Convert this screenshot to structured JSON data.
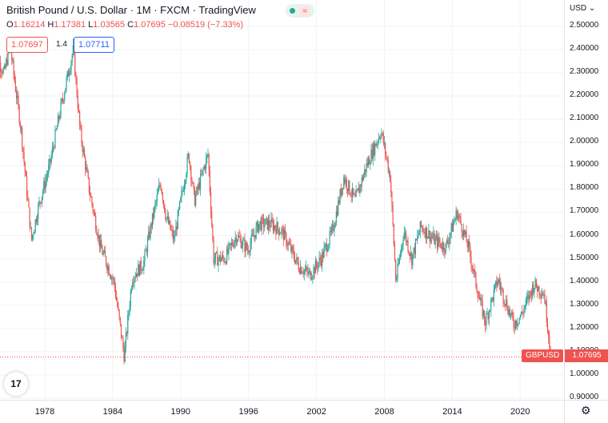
{
  "legend": {
    "title": "British Pound / U.S. Dollar · 1M · FXCM · TradingView",
    "o_label": "O",
    "o_value": "1.16214",
    "h_label": "H",
    "h_value": "1.17381",
    "l_label": "L",
    "l_value": "1.03565",
    "c_label": "C",
    "c_value": "1.07695",
    "change": "−0.08519 (−7.33%)"
  },
  "trade": {
    "sell_price": "1.07697",
    "spread": "1.4",
    "buy_price": "1.07711"
  },
  "price_axis": {
    "currency": "USD",
    "labels": [
      "2.50000",
      "2.40000",
      "2.30000",
      "2.20000",
      "2.10000",
      "2.00000",
      "1.90000",
      "1.80000",
      "1.70000",
      "1.60000",
      "1.50000",
      "1.40000",
      "1.30000",
      "1.20000",
      "1.10000",
      "1.00000",
      "0.90000"
    ]
  },
  "time_axis": {
    "labels": [
      "1978",
      "1984",
      "1990",
      "1996",
      "2002",
      "2008",
      "2014",
      "2020"
    ]
  },
  "current": {
    "symbol": "GBPUSD",
    "price": "1.07695"
  },
  "colors": {
    "up": "#26a69a",
    "down": "#ef5350",
    "grid": "#f0f3fa"
  },
  "chart_data": {
    "type": "candlestick",
    "x_range": [
      1973.5,
      2023.5
    ],
    "y_range": [
      0.9,
      2.5
    ],
    "anchors": [
      [
        1974.0,
        2.35
      ],
      [
        1974.5,
        2.3
      ],
      [
        1975.0,
        2.42
      ],
      [
        1976.0,
        2.05
      ],
      [
        1976.9,
        1.58
      ],
      [
        1977.5,
        1.72
      ],
      [
        1978.5,
        1.9
      ],
      [
        1979.5,
        2.15
      ],
      [
        1980.6,
        2.4
      ],
      [
        1981.2,
        2.05
      ],
      [
        1982.0,
        1.8
      ],
      [
        1983.0,
        1.55
      ],
      [
        1984.2,
        1.4
      ],
      [
        1985.1,
        1.08
      ],
      [
        1985.8,
        1.42
      ],
      [
        1986.8,
        1.48
      ],
      [
        1987.5,
        1.65
      ],
      [
        1988.3,
        1.83
      ],
      [
        1988.8,
        1.68
      ],
      [
        1989.5,
        1.58
      ],
      [
        1990.8,
        1.95
      ],
      [
        1991.3,
        1.75
      ],
      [
        1992.5,
        1.95
      ],
      [
        1993.0,
        1.5
      ],
      [
        1994.0,
        1.5
      ],
      [
        1995.0,
        1.6
      ],
      [
        1996.0,
        1.54
      ],
      [
        1997.0,
        1.65
      ],
      [
        1998.0,
        1.65
      ],
      [
        1999.0,
        1.62
      ],
      [
        2000.5,
        1.47
      ],
      [
        2001.5,
        1.43
      ],
      [
        2002.5,
        1.5
      ],
      [
        2003.5,
        1.62
      ],
      [
        2004.5,
        1.85
      ],
      [
        2005.5,
        1.75
      ],
      [
        2006.5,
        1.9
      ],
      [
        2007.8,
        2.05
      ],
      [
        2008.6,
        1.85
      ],
      [
        2009.1,
        1.4
      ],
      [
        2009.8,
        1.62
      ],
      [
        2010.5,
        1.5
      ],
      [
        2011.3,
        1.64
      ],
      [
        2012.5,
        1.58
      ],
      [
        2013.5,
        1.55
      ],
      [
        2014.5,
        1.7
      ],
      [
        2015.5,
        1.55
      ],
      [
        2016.5,
        1.32
      ],
      [
        2017.0,
        1.23
      ],
      [
        2017.5,
        1.31
      ],
      [
        2018.1,
        1.41
      ],
      [
        2019.5,
        1.22
      ],
      [
        2020.2,
        1.26
      ],
      [
        2021.3,
        1.39
      ],
      [
        2022.2,
        1.35
      ],
      [
        2022.8,
        1.08
      ]
    ]
  }
}
